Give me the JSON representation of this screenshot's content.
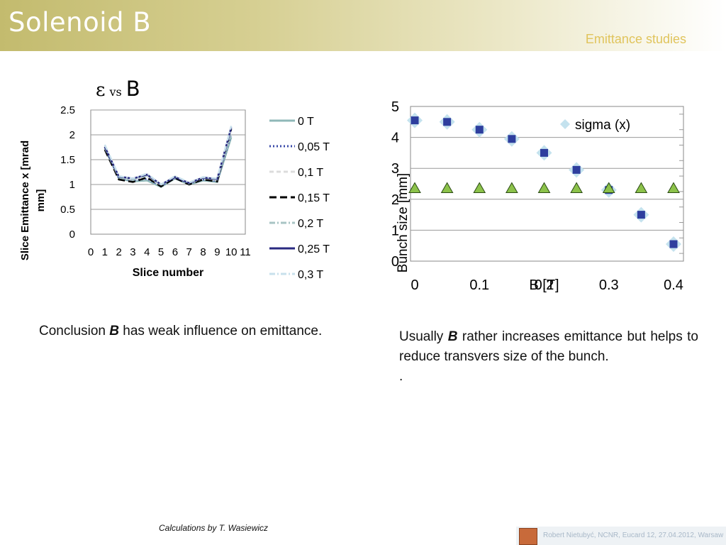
{
  "slide": {
    "title": "Solenoid B",
    "subtitle": "Emittance studies",
    "credit": "Calculations by T. Wasiewicz",
    "footer": "Robert Nietubyć, NCNR,  Eucard 12, 27.04.2012, Warsaw"
  },
  "left_chart_title": {
    "eps": "ε",
    "vs": "vs",
    "b": "B"
  },
  "conclusion": {
    "pre": "Conclusion ",
    "b": "B",
    "post": " has weak influence on emittance."
  },
  "usually": {
    "pre": "Usually ",
    "b": "B",
    "post": " rather increases emittance but helps to reduce transvers size of the bunch.",
    "dot": "."
  },
  "chart_data": [
    {
      "type": "line",
      "xlabel": "Slice number",
      "ylabel": "Slice Emittance x [mrad mm]",
      "xticks": [
        0,
        1,
        2,
        3,
        4,
        5,
        6,
        7,
        8,
        9,
        10,
        11
      ],
      "yticks": [
        0,
        0.5,
        1,
        1.5,
        2,
        2.5
      ],
      "xlim": [
        0,
        11
      ],
      "ylim": [
        0,
        2.5
      ],
      "grid": true,
      "legend_position": "right",
      "x": [
        1,
        2,
        3,
        4,
        5,
        6,
        7,
        8,
        9,
        10
      ],
      "series": [
        {
          "name": "0 T",
          "color": "#8fb8b8",
          "dash": "solid",
          "values": [
            1.72,
            1.12,
            1.06,
            1.08,
            0.95,
            1.12,
            1.0,
            1.08,
            1.05,
            1.95
          ]
        },
        {
          "name": "0,05 T",
          "color": "#3a4aa8",
          "dash": "dotted",
          "values": [
            1.75,
            1.13,
            1.08,
            1.12,
            0.97,
            1.14,
            1.02,
            1.1,
            1.07,
            2.02
          ]
        },
        {
          "name": "0,1 T",
          "color": "#dcdcdc",
          "dash": "dashed",
          "values": [
            1.78,
            1.15,
            1.1,
            1.16,
            0.98,
            1.15,
            1.03,
            1.12,
            1.09,
            2.08
          ]
        },
        {
          "name": "0,15 T",
          "color": "#000000",
          "dash": "longdash",
          "values": [
            1.7,
            1.1,
            1.05,
            1.14,
            0.96,
            1.13,
            1.0,
            1.1,
            1.06,
            2.12
          ]
        },
        {
          "name": "0,2 T",
          "color": "#a8c4c4",
          "dash": "dashdot",
          "values": [
            1.74,
            1.14,
            1.09,
            1.18,
            0.99,
            1.16,
            1.02,
            1.13,
            1.1,
            2.05
          ]
        },
        {
          "name": "0,25 T",
          "color": "#2a2a80",
          "dash": "solid",
          "values": [
            1.76,
            1.16,
            1.12,
            1.2,
            1.0,
            1.15,
            1.03,
            1.14,
            1.11,
            2.15
          ]
        },
        {
          "name": "0,3 T",
          "color": "#c8e0ec",
          "dash": "dashdot",
          "values": [
            1.8,
            1.17,
            1.12,
            1.22,
            1.0,
            1.17,
            1.04,
            1.15,
            1.12,
            2.18
          ]
        }
      ]
    },
    {
      "type": "scatter",
      "xlabel": "B [T]",
      "ylabel": "Bunch size [mm]",
      "xticks": [
        "0",
        "0.1",
        "0.2",
        "0.3",
        "0.4"
      ],
      "yticks": [
        0,
        1,
        2,
        3,
        4,
        5
      ],
      "xlim": [
        0,
        0.4
      ],
      "ylim": [
        0,
        5
      ],
      "grid": true,
      "legend_position": "top-right",
      "series": [
        {
          "name": "sigma (x)",
          "color": "#c4e2ee",
          "marker": "diamond",
          "x": [
            0,
            0.05,
            0.1,
            0.15,
            0.2,
            0.25,
            0.3,
            0.35,
            0.4
          ],
          "values": [
            4.55,
            4.5,
            4.25,
            3.95,
            3.5,
            2.95,
            2.3,
            1.5,
            0.55
          ]
        },
        {
          "color": "#2e3e9e",
          "marker": "square",
          "x": [
            0,
            0.05,
            0.1,
            0.15,
            0.2,
            0.25,
            0.3,
            0.35,
            0.4
          ],
          "values": [
            4.55,
            4.5,
            4.25,
            3.95,
            3.5,
            2.95,
            2.3,
            1.5,
            0.55
          ]
        },
        {
          "color": "#8cc24a",
          "marker": "triangle",
          "x": [
            0,
            0.05,
            0.1,
            0.15,
            0.2,
            0.25,
            0.3,
            0.35,
            0.4
          ],
          "values": [
            2.35,
            2.35,
            2.35,
            2.35,
            2.35,
            2.35,
            2.35,
            2.35,
            2.35
          ]
        }
      ]
    }
  ]
}
